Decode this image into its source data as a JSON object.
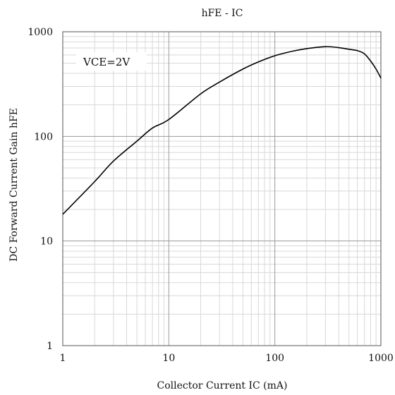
{
  "chart_data": {
    "type": "line",
    "title": "hFE - IC",
    "xlabel": "Collector Current IC (mA)",
    "ylabel": "DC Forward Current Gain hFE",
    "xscale": "log",
    "yscale": "log",
    "xlim": [
      1,
      1000
    ],
    "ylim": [
      1,
      1000
    ],
    "xticks": [
      {
        "value": 1,
        "label": "1"
      },
      {
        "value": 10,
        "label": "10"
      },
      {
        "value": 100,
        "label": "100"
      },
      {
        "value": 1000,
        "label": "1000"
      }
    ],
    "yticks": [
      {
        "value": 1,
        "label": "1"
      },
      {
        "value": 10,
        "label": "10"
      },
      {
        "value": 100,
        "label": "100"
      },
      {
        "value": 1000,
        "label": "1000"
      }
    ],
    "grid": true,
    "annotation": "VCE=2V",
    "series": [
      {
        "x": [
          1,
          2,
          3,
          5,
          7,
          10,
          20,
          30,
          50,
          70,
          100,
          150,
          200,
          300,
          400,
          500,
          600,
          700,
          800,
          900,
          1000
        ],
        "y": [
          18,
          37,
          58,
          90,
          120,
          145,
          255,
          330,
          440,
          515,
          590,
          655,
          690,
          720,
          705,
          680,
          660,
          615,
          525,
          440,
          360
        ]
      }
    ],
    "colors": {
      "line": "#000000",
      "major_grid": "#9a9a9a",
      "minor_grid": "#d8d8d8",
      "frame": "#555555"
    }
  }
}
